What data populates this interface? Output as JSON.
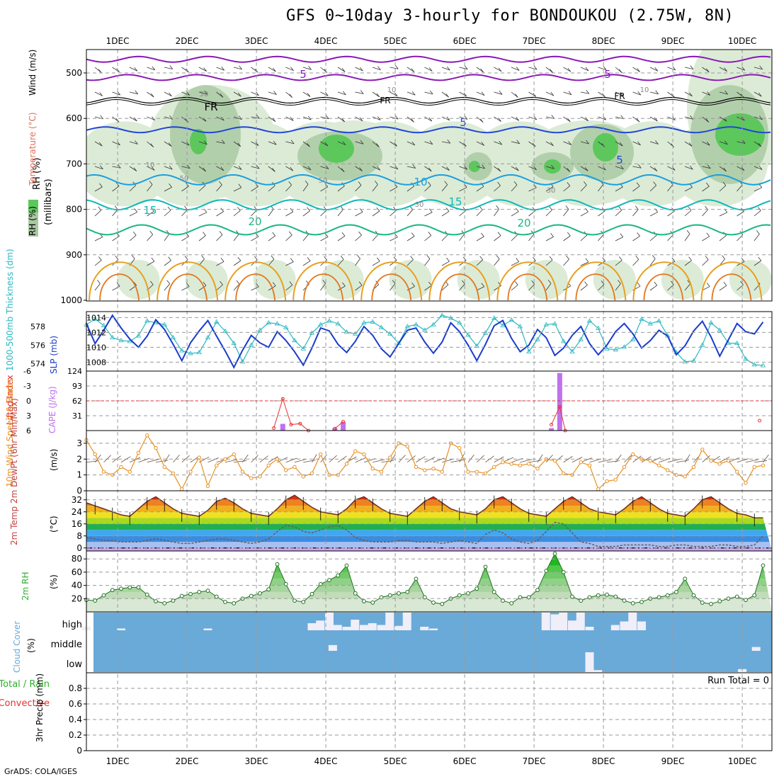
{
  "title": "GFS 0~10day 3-hourly for BONDOUKOU (2.75W, 8N)",
  "credit": "GrADS: COLA/IGES",
  "colors": {
    "rh_light": "#dcebd6",
    "rh_mid": "#a8c8a0",
    "rh_dark": "#7fae7f",
    "rh_green": "#5cc85c",
    "temp_purple": "#8a18b8",
    "temp_blue": "#2046d8",
    "temp_lightblue": "#1aa0e0",
    "temp_teal": "#10b8b8",
    "temp_green": "#18b880",
    "temp_orange": "#e8a020",
    "slp": "#1a3ccc",
    "thickness": "#2ab8c0",
    "lifted": "#e83030",
    "cape": "#c070f0",
    "wind10": "#e89020",
    "rh2m": "#30b030",
    "cloud": "#6aaad8",
    "cloud_cell": "#f0eef8"
  },
  "chart_data": [
    {
      "type": "heatmap",
      "name_panel": "upper-air",
      "ylabel_parts": [
        "RH (%)",
        "Temperature (°C)",
        "Wind (m/s)"
      ],
      "ylabel_units": "(millibars)",
      "y_ticks": [
        500,
        600,
        700,
        800,
        900,
        1000
      ],
      "ylim": [
        1000,
        450
      ],
      "x_ticks": [
        "1DEC",
        "2DEC",
        "3DEC",
        "4DEC",
        "5DEC",
        "6DEC",
        "7DEC",
        "8DEC",
        "9DEC",
        "10DEC"
      ],
      "temperature_contours": [
        {
          "label": "5",
          "level_mb": 510
        },
        {
          "label": "FR",
          "level_mb": 560
        },
        {
          "label": "5",
          "level_mb": 625
        },
        {
          "label": "10",
          "level_mb": 740
        },
        {
          "label": "15",
          "level_mb": 795
        },
        {
          "label": "20",
          "level_mb": 845
        }
      ],
      "rh_labels": [
        "10",
        "30",
        "50",
        "10",
        "30",
        "50",
        "10",
        "30"
      ]
    },
    {
      "type": "line",
      "name_panel": "slp-thickness",
      "ylabel_left": "1000-500mb Thickness (dm)",
      "ylabel_right": "SLP (mb)",
      "left_ticks": [
        574,
        576,
        578
      ],
      "right_ticks": [
        1008,
        1010,
        1012,
        1014
      ],
      "ylim_slp": [
        1006.8,
        1014.8
      ],
      "ylim_thk": [
        573.2,
        579.6
      ],
      "x_day": [
        0.55,
        0.675,
        0.8,
        0.925,
        1.05,
        1.175,
        1.3,
        1.425,
        1.55,
        1.675,
        1.8,
        1.925,
        2.05,
        2.175,
        2.3,
        2.425,
        2.55,
        2.675,
        2.8,
        2.925,
        3.05,
        3.175,
        3.3,
        3.425,
        3.55,
        3.675,
        3.8,
        3.925,
        4.05,
        4.175,
        4.3,
        4.425,
        4.55,
        4.675,
        4.8,
        4.925,
        5.05,
        5.175,
        5.3,
        5.425,
        5.55,
        5.675,
        5.8,
        5.925,
        6.05,
        6.175,
        6.3,
        6.425,
        6.55,
        6.675,
        6.8,
        6.925,
        7.05,
        7.175,
        7.3,
        7.425,
        7.55,
        7.675,
        7.8,
        7.925,
        8.05,
        8.175,
        8.3,
        8.425,
        8.55,
        8.675,
        8.8,
        8.925,
        9.05,
        9.175,
        9.3,
        9.425,
        9.55,
        9.675,
        9.8,
        9.925,
        10.05,
        10.175,
        10.3
      ],
      "series": [
        {
          "name": "SLP",
          "values": [
            1013.2,
            1010.5,
            1012.3,
            1014.3,
            1012.6,
            1011.1,
            1010.0,
            1011.5,
            1013.7,
            1012.4,
            1010.4,
            1008.2,
            1010.6,
            1012.2,
            1013.6,
            1011.5,
            1009.5,
            1007.3,
            1009.6,
            1011.6,
            1010.6,
            1010.0,
            1012.1,
            1010.9,
            1009.4,
            1007.6,
            1009.9,
            1012.6,
            1012.2,
            1010.4,
            1009.3,
            1010.8,
            1012.8,
            1011.6,
            1009.8,
            1008.7,
            1010.5,
            1012.3,
            1012.6,
            1010.7,
            1009.2,
            1010.7,
            1013.3,
            1012.1,
            1010.3,
            1008.2,
            1010.4,
            1012.9,
            1013.6,
            1011.2,
            1009.4,
            1010.3,
            1012.4,
            1011.3,
            1008.9,
            1009.9,
            1011.6,
            1012.8,
            1010.5,
            1009.0,
            1010.3,
            1012.1,
            1013.2,
            1011.8,
            1009.9,
            1010.9,
            1012.3,
            1011.5,
            1009.0,
            1010.2,
            1012.2,
            1013.5,
            1011.4,
            1008.8,
            1011.0,
            1013.2,
            1012.1,
            1011.8,
            1013.4
          ]
        },
        {
          "name": "Thickness",
          "values": [
            578.2,
            578.8,
            578.1,
            576.8,
            576.5,
            576.4,
            577.0,
            578.6,
            578.4,
            578.2,
            576.8,
            575.4,
            575.1,
            575.2,
            576.8,
            578.5,
            577.5,
            576.2,
            574.2,
            576.0,
            577.6,
            578.4,
            578.3,
            577.9,
            576.5,
            575.6,
            577.3,
            578.2,
            578.6,
            578.3,
            577.4,
            577.2,
            578.4,
            578.5,
            577.9,
            577.2,
            576.2,
            578.0,
            578.2,
            577.6,
            578.2,
            579.2,
            578.9,
            578.4,
            577.1,
            575.9,
            577.3,
            578.9,
            578.1,
            578.7,
            578.0,
            575.3,
            576.6,
            578.2,
            578.3,
            576.4,
            575.3,
            576.6,
            578.6,
            577.8,
            575.6,
            575.5,
            575.8,
            576.6,
            578.8,
            578.3,
            578.6,
            577.0,
            575.2,
            574.2,
            574.3,
            576.0,
            578.4,
            577.6,
            576.2,
            576.2,
            574.5,
            573.9,
            573.8
          ]
        }
      ]
    },
    {
      "type": "bar",
      "name_panel": "cape-li",
      "ylabel_left": "Lifted Index",
      "ylabel_right": "CAPE (J/kg)",
      "li_ticks": [
        "-6",
        "-3",
        "0",
        "3",
        "6"
      ],
      "cape_ticks": [
        31,
        62,
        93,
        124
      ],
      "ylim_cape": [
        0,
        124
      ],
      "cape_bars": [
        {
          "day": 3.38,
          "value": 14
        },
        {
          "day": 4.13,
          "value": 5
        },
        {
          "day": 4.25,
          "value": 18
        },
        {
          "day": 7.25,
          "value": 5
        },
        {
          "day": 7.37,
          "value": 120
        }
      ],
      "li_points": [
        {
          "day": 3.25,
          "value": 5.5
        },
        {
          "day": 3.38,
          "value": -0.4
        },
        {
          "day": 3.5,
          "value": 4.8
        },
        {
          "day": 3.63,
          "value": 4.6
        },
        {
          "day": 3.75,
          "value": 6
        },
        {
          "day": 4.13,
          "value": 5.6
        },
        {
          "day": 4.25,
          "value": 4.2
        },
        {
          "day": 7.25,
          "value": 4.8
        },
        {
          "day": 7.37,
          "value": 1.2
        },
        {
          "day": 7.45,
          "value": 6
        },
        {
          "day": 10.25,
          "value": 4
        }
      ]
    },
    {
      "type": "line",
      "name_panel": "wind10m",
      "ylabel": "10m Wind Speed & Barbs",
      "units": "(m/s)",
      "y_ticks": [
        0,
        1,
        2,
        3
      ],
      "ylim": [
        0,
        3.8
      ],
      "x_day": [
        0.55,
        0.675,
        0.8,
        0.925,
        1.05,
        1.175,
        1.3,
        1.425,
        1.55,
        1.675,
        1.8,
        1.925,
        2.05,
        2.175,
        2.3,
        2.425,
        2.55,
        2.675,
        2.8,
        2.925,
        3.05,
        3.175,
        3.3,
        3.425,
        3.55,
        3.675,
        3.8,
        3.925,
        4.05,
        4.175,
        4.3,
        4.425,
        4.55,
        4.675,
        4.8,
        4.925,
        5.05,
        5.175,
        5.3,
        5.425,
        5.55,
        5.675,
        5.8,
        5.925,
        6.05,
        6.175,
        6.3,
        6.425,
        6.55,
        6.675,
        6.8,
        6.925,
        7.05,
        7.175,
        7.3,
        7.425,
        7.55,
        7.675,
        7.8,
        7.925,
        8.05,
        8.175,
        8.3,
        8.425,
        8.55,
        8.675,
        8.8,
        8.925,
        9.05,
        9.175,
        9.3,
        9.425,
        9.55,
        9.675,
        9.8,
        9.925,
        10.05,
        10.175,
        10.3
      ],
      "values": [
        3.2,
        2.3,
        1.2,
        1.0,
        1.5,
        1.2,
        2.4,
        3.5,
        2.7,
        1.5,
        1.1,
        0.1,
        1.2,
        2.1,
        0.3,
        1.6,
        2.0,
        2.3,
        1.2,
        0.8,
        0.9,
        1.6,
        2.0,
        1.3,
        1.5,
        0.9,
        1.1,
        2.3,
        1.0,
        1.0,
        1.7,
        2.5,
        2.3,
        1.4,
        1.2,
        2.1,
        3.0,
        2.8,
        1.5,
        1.3,
        1.4,
        1.2,
        3.0,
        2.7,
        1.2,
        1.2,
        1.1,
        1.5,
        1.8,
        1.7,
        1.6,
        1.7,
        1.4,
        2.0,
        1.9,
        1.1,
        1.0,
        1.8,
        1.6,
        0.1,
        0.6,
        0.7,
        1.5,
        2.3,
        2.0,
        1.9,
        1.6,
        1.3,
        1.0,
        0.9,
        1.5,
        2.6,
        1.9,
        1.7,
        1.9,
        1.2,
        0.5,
        1.5,
        1.6
      ]
    },
    {
      "type": "area",
      "name_panel": "temperature",
      "ylabel": "2m Temp 2m DewPt (6hr Min/Max)",
      "units": "(°C)",
      "y_ticks": [
        0,
        8,
        16,
        24,
        32
      ],
      "ylim": [
        -2,
        38
      ],
      "x_day": [
        0.55,
        0.675,
        0.8,
        0.925,
        1.05,
        1.175,
        1.3,
        1.425,
        1.55,
        1.675,
        1.8,
        1.925,
        2.05,
        2.175,
        2.3,
        2.425,
        2.55,
        2.675,
        2.8,
        2.925,
        3.05,
        3.175,
        3.3,
        3.425,
        3.55,
        3.675,
        3.8,
        3.925,
        4.05,
        4.175,
        4.3,
        4.425,
        4.55,
        4.675,
        4.8,
        4.925,
        5.05,
        5.175,
        5.3,
        5.425,
        5.55,
        5.675,
        5.8,
        5.925,
        6.05,
        6.175,
        6.3,
        6.425,
        6.55,
        6.675,
        6.8,
        6.925,
        7.05,
        7.175,
        7.3,
        7.425,
        7.55,
        7.675,
        7.8,
        7.925,
        8.05,
        8.175,
        8.3,
        8.425,
        8.55,
        8.675,
        8.8,
        8.925,
        9.05,
        9.175,
        9.3,
        9.425,
        9.55,
        9.675,
        9.8,
        9.925,
        10.05,
        10.175,
        10.3
      ],
      "temp_values": [
        30,
        28,
        26,
        24,
        22,
        21,
        26,
        31,
        34,
        30,
        26,
        23,
        22,
        21,
        25,
        31,
        33,
        30,
        26,
        23,
        22,
        21,
        26,
        32,
        35,
        31,
        27,
        24,
        23,
        22,
        26,
        32,
        34,
        30,
        26,
        23,
        22,
        21,
        26,
        31,
        34,
        30,
        26,
        24,
        23,
        22,
        26,
        32,
        34,
        30,
        26,
        23,
        22,
        21,
        26,
        31,
        34,
        30,
        26,
        24,
        23,
        22,
        26,
        31,
        34,
        30,
        26,
        23,
        22,
        21,
        26,
        32,
        34,
        30,
        26,
        23,
        22,
        20,
        20
      ],
      "dew_values": [
        7,
        6,
        5,
        5,
        4,
        4,
        4,
        5,
        6,
        5,
        4,
        3,
        3,
        4,
        5,
        6,
        6,
        5,
        4,
        3,
        4,
        6,
        11,
        15,
        14,
        11,
        10,
        12,
        14,
        15,
        12,
        7,
        5,
        4,
        4,
        4,
        5,
        5,
        4,
        4,
        4,
        3,
        4,
        5,
        4,
        3,
        9,
        12,
        10,
        6,
        4,
        3,
        5,
        11,
        17,
        16,
        10,
        4,
        3,
        1,
        1,
        1,
        2,
        2,
        2,
        2,
        1,
        1,
        2,
        2,
        1,
        1,
        1,
        2,
        2,
        1,
        1,
        2,
        8
      ]
    },
    {
      "type": "area",
      "name_panel": "rh2m",
      "ylabel": "2m RH",
      "units": "(%)",
      "y_ticks": [
        20,
        40,
        60,
        80
      ],
      "ylim": [
        0,
        92
      ],
      "x_day": [
        0.55,
        0.675,
        0.8,
        0.925,
        1.05,
        1.175,
        1.3,
        1.425,
        1.55,
        1.675,
        1.8,
        1.925,
        2.05,
        2.175,
        2.3,
        2.425,
        2.55,
        2.675,
        2.8,
        2.925,
        3.05,
        3.175,
        3.3,
        3.425,
        3.55,
        3.675,
        3.8,
        3.925,
        4.05,
        4.175,
        4.3,
        4.425,
        4.55,
        4.675,
        4.8,
        4.925,
        5.05,
        5.175,
        5.3,
        5.425,
        5.55,
        5.675,
        5.8,
        5.925,
        6.05,
        6.175,
        6.3,
        6.425,
        6.55,
        6.675,
        6.8,
        6.925,
        7.05,
        7.175,
        7.3,
        7.425,
        7.55,
        7.675,
        7.8,
        7.925,
        8.05,
        8.175,
        8.3,
        8.425,
        8.55,
        8.675,
        8.8,
        8.925,
        9.05,
        9.175,
        9.3,
        9.425,
        9.55,
        9.675,
        9.8,
        9.925,
        10.05,
        10.175,
        10.3
      ],
      "values": [
        18,
        17,
        25,
        33,
        35,
        37,
        37,
        26,
        16,
        13,
        17,
        24,
        27,
        30,
        32,
        23,
        15,
        13,
        20,
        24,
        28,
        34,
        72,
        42,
        17,
        15,
        27,
        42,
        48,
        55,
        70,
        28,
        16,
        14,
        22,
        25,
        28,
        30,
        50,
        22,
        14,
        12,
        20,
        25,
        28,
        35,
        68,
        30,
        17,
        13,
        22,
        22,
        33,
        62,
        88,
        60,
        23,
        17,
        22,
        25,
        26,
        23,
        17,
        13,
        15,
        20,
        22,
        25,
        30,
        50,
        25,
        14,
        12,
        16,
        20,
        23,
        18,
        25,
        70
      ]
    },
    {
      "type": "heatmap",
      "name_panel": "cloud-cover",
      "ylabel": "Cloud Cover",
      "units": "(%)",
      "levels": [
        "high",
        "middle",
        "low"
      ],
      "high_layer": [
        {
          "day": 0.55,
          "value": 20
        },
        {
          "day": 1.05,
          "value": 10
        },
        {
          "day": 2.3,
          "value": 10
        },
        {
          "day": 3.8,
          "value": 40
        },
        {
          "day": 3.92,
          "value": 55
        },
        {
          "day": 4.05,
          "value": 100
        },
        {
          "day": 4.17,
          "value": 30
        },
        {
          "day": 4.3,
          "value": 20
        },
        {
          "day": 4.42,
          "value": 60
        },
        {
          "day": 4.55,
          "value": 30
        },
        {
          "day": 4.67,
          "value": 40
        },
        {
          "day": 4.8,
          "value": 30
        },
        {
          "day": 4.92,
          "value": 100
        },
        {
          "day": 5.05,
          "value": 25
        },
        {
          "day": 5.17,
          "value": 100
        },
        {
          "day": 5.42,
          "value": 20
        },
        {
          "day": 5.55,
          "value": 10
        },
        {
          "day": 7.17,
          "value": 100
        },
        {
          "day": 7.3,
          "value": 90
        },
        {
          "day": 7.42,
          "value": 100
        },
        {
          "day": 7.55,
          "value": 55
        },
        {
          "day": 7.67,
          "value": 100
        },
        {
          "day": 7.8,
          "value": 20
        },
        {
          "day": 8.17,
          "value": 30
        },
        {
          "day": 8.3,
          "value": 50
        },
        {
          "day": 8.42,
          "value": 100
        },
        {
          "day": 8.55,
          "value": 50
        }
      ],
      "middle_layer": [
        {
          "day": 4.1,
          "value": 30
        },
        {
          "day": 10.2,
          "value": 20
        }
      ],
      "low_layer": [
        {
          "day": 7.8,
          "value": 100
        },
        {
          "day": 7.92,
          "value": 10
        },
        {
          "day": 10.0,
          "value": 15
        }
      ]
    },
    {
      "type": "bar",
      "name_panel": "precip",
      "ylabel_left": "Total / Rain",
      "ylabel_left2": "Convective",
      "ylabel": "3hr Precip",
      "units": "(mm)",
      "y_ticks": [
        "0",
        "0.2",
        "0.4",
        "0.6",
        "0.8"
      ],
      "ylim": [
        0,
        1
      ],
      "run_total_text": "Run Total = 0",
      "values": []
    }
  ]
}
